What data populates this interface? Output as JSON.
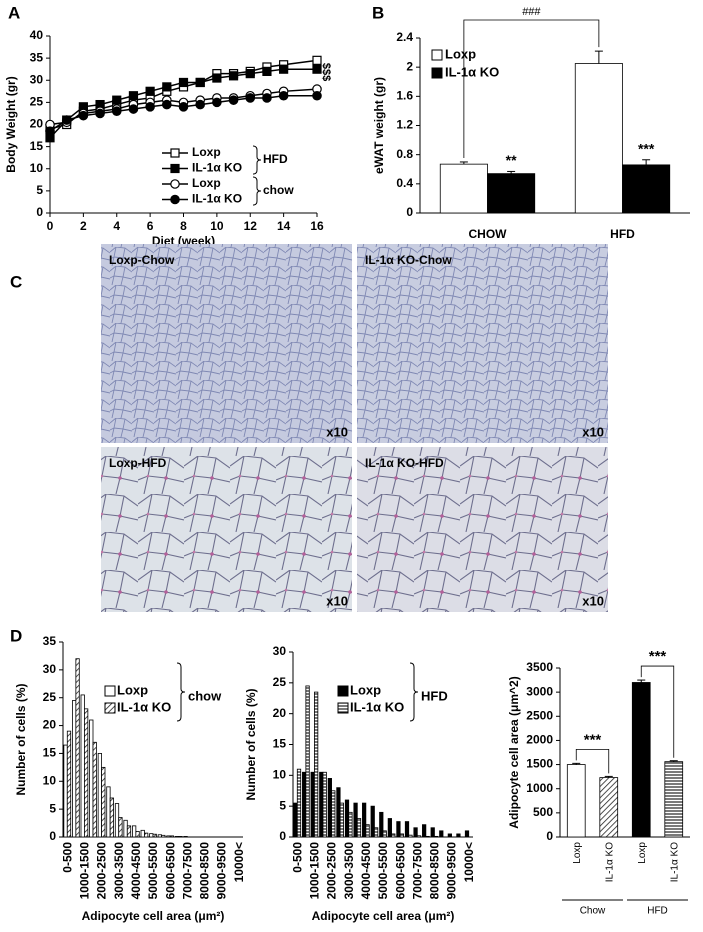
{
  "chart_data": [
    {
      "type": "line",
      "panel": "A",
      "xlabel": "Diet (week)",
      "ylabel": "Body Weight (gr)",
      "x": [
        0,
        1,
        2,
        3,
        4,
        5,
        6,
        7,
        8,
        9,
        10,
        11,
        12,
        13,
        14,
        16
      ],
      "xlim": [
        0,
        16
      ],
      "xticks": [
        0,
        2,
        4,
        6,
        8,
        10,
        12,
        14,
        16
      ],
      "ylim": [
        0,
        40
      ],
      "yticks": [
        0,
        5,
        10,
        15,
        20,
        25,
        30,
        35,
        40
      ],
      "series": [
        {
          "name": "Loxp",
          "marker": "square",
          "color": "#ffffff",
          "values": [
            19,
            20,
            23,
            23.5,
            24.5,
            25.5,
            26,
            27.5,
            28.5,
            29.5,
            31.5,
            31.5,
            32,
            33,
            33.5,
            34.5
          ]
        },
        {
          "name": "IL-1α KO",
          "marker": "square",
          "color": "#000000",
          "values": [
            17,
            21,
            24,
            24.5,
            25.5,
            26.5,
            27.5,
            28.5,
            29.5,
            29.5,
            30.5,
            31,
            31.5,
            32,
            32.5,
            32.5
          ]
        },
        {
          "name": "Loxp",
          "marker": "circle",
          "color": "#ffffff",
          "values": [
            20,
            20.5,
            22.5,
            23,
            23.5,
            24.5,
            25,
            25.5,
            25,
            25.5,
            26,
            26,
            26.5,
            27,
            27.5,
            28
          ]
        },
        {
          "name": "IL-1α KO",
          "marker": "circle",
          "color": "#000000",
          "values": [
            18.5,
            21,
            22,
            22.5,
            23,
            23.5,
            24,
            24.5,
            24,
            24.5,
            25,
            25.5,
            26,
            26,
            26.5,
            26.5
          ]
        }
      ],
      "legend_groups": [
        "HFD",
        "chow"
      ],
      "annotation": "$$$"
    },
    {
      "type": "bar",
      "panel": "B",
      "ylabel": "eWAT weight (gr)",
      "categories": [
        "CHOW",
        "HFD"
      ],
      "ylim": [
        0,
        2.4
      ],
      "yticks": [
        0,
        0.4,
        0.8,
        1.2,
        1.6,
        2,
        2.4
      ],
      "series": [
        {
          "name": "Loxp",
          "color": "#ffffff",
          "values": [
            0.67,
            2.05
          ],
          "errors": [
            0.03,
            0.17
          ]
        },
        {
          "name": "IL-1α KO",
          "color": "#000000",
          "values": [
            0.54,
            0.66
          ],
          "errors": [
            0.03,
            0.07
          ],
          "sig": [
            "**",
            "***"
          ]
        }
      ],
      "bracket_label": "###"
    },
    {
      "type": "image_grid",
      "panel": "C",
      "images": [
        {
          "label": "Loxp-Chow",
          "magnification": "x10",
          "color": "#c5cadf"
        },
        {
          "label": "IL-1α KO-Chow",
          "magnification": "x10",
          "color": "#c8cde0"
        },
        {
          "label": "Loxp-HFD",
          "magnification": "x10",
          "color": "#dde2e8"
        },
        {
          "label": "IL-1α KO-HFD",
          "magnification": "x10",
          "color": "#dcdde6"
        }
      ]
    },
    {
      "type": "bar",
      "panel": "D",
      "xlabel": "Adipocyte cell area (μm²)",
      "ylabel": "Number of cells (%)",
      "categories": [
        "0-500",
        null,
        "1000-1500",
        null,
        "2000-2500",
        null,
        "3000-3500",
        null,
        "4000-4500",
        null,
        "5000-5500",
        null,
        "6000-6500",
        null,
        "7000-7500",
        null,
        "8000-8500",
        null,
        "9000-9500",
        null,
        "10000<"
      ],
      "ylim": [
        0,
        35
      ],
      "yticks": [
        0,
        5,
        10,
        15,
        20,
        25,
        30,
        35
      ],
      "series": [
        {
          "name": "Loxp",
          "color": "#ffffff",
          "pattern": "solid",
          "values": [
            16.5,
            24.5,
            25.5,
            21,
            15,
            9,
            6,
            3,
            2,
            1.2,
            0.6,
            0.4,
            0.2,
            0.1,
            0.1,
            0,
            0,
            0,
            0,
            0,
            0
          ]
        },
        {
          "name": "IL-1α KO",
          "color": "#ffffff",
          "pattern": "diagonal",
          "values": [
            19,
            32,
            23,
            17,
            12.5,
            7,
            3.5,
            2,
            1,
            0.7,
            0.5,
            0.3,
            0.2,
            0.1,
            0,
            0,
            0,
            0,
            0,
            0,
            0
          ]
        }
      ],
      "legend_group": "chow"
    },
    {
      "type": "bar",
      "xlabel": "Adipocyte cell area (μm²)",
      "ylabel": "Number of cells (%)",
      "categories": [
        "0-500",
        null,
        "1000-1500",
        null,
        "2000-2500",
        null,
        "3000-3500",
        null,
        "4000-4500",
        null,
        "5000-5500",
        null,
        "6000-6500",
        null,
        "7000-7500",
        null,
        "8000-8500",
        null,
        "9000-9500",
        null,
        "10000<"
      ],
      "ylim": [
        0,
        30
      ],
      "yticks": [
        0,
        5,
        10,
        15,
        20,
        25,
        30
      ],
      "series": [
        {
          "name": "Loxp",
          "color": "#000000",
          "pattern": "solid",
          "values": [
            5.5,
            10.5,
            10.5,
            10.5,
            9.5,
            8,
            6,
            5.5,
            5.5,
            5,
            4,
            3,
            2.5,
            2.5,
            1.5,
            2,
            1.5,
            1,
            0.5,
            0.5,
            1
          ]
        },
        {
          "name": "IL-1α KO",
          "color": "#ffffff",
          "pattern": "horizontal",
          "values": [
            11,
            24.5,
            23.5,
            10.5,
            7.5,
            5.5,
            4,
            3,
            2,
            1.5,
            1,
            0.5,
            0.5,
            0.3,
            0.2,
            0.1,
            0.1,
            0,
            0,
            0,
            0
          ]
        }
      ],
      "legend_group": "HFD"
    },
    {
      "type": "bar",
      "ylabel": "Adipocyte cell area (μm^2)",
      "categories": [
        "Loxp",
        "IL-1α KO",
        "Loxp",
        "IL-1α KO"
      ],
      "groups": [
        "Chow",
        "HFD"
      ],
      "values": [
        1500,
        1230,
        3200,
        1560
      ],
      "errors": [
        25,
        25,
        50,
        20
      ],
      "colors": [
        "#ffffff",
        "#ffffff",
        "#000000",
        "#ffffff"
      ],
      "patterns": [
        "solid",
        "diagonal",
        "solid",
        "horizontal"
      ],
      "ylim": [
        0,
        3500
      ],
      "yticks": [
        0,
        500,
        1000,
        1500,
        2000,
        2500,
        3000,
        3500
      ],
      "sig": [
        "***",
        "***"
      ]
    }
  ]
}
